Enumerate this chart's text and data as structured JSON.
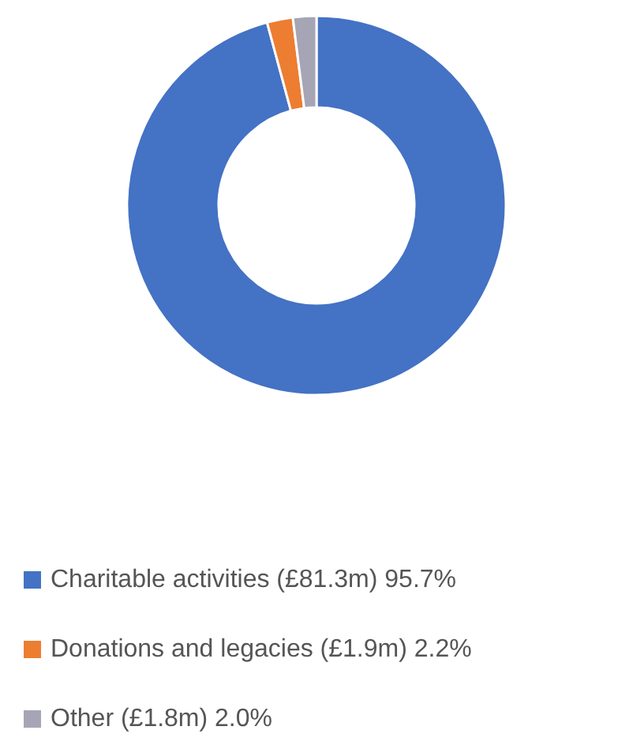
{
  "chart_data": {
    "type": "donut",
    "categories": [
      "Charitable activities (£81.3m) 95.7%",
      "Donations and legacies (£1.9m) 2.2%",
      "Other (£1.8m) 2.0%"
    ],
    "values": [
      95.7,
      2.2,
      2.0
    ],
    "colors": [
      "#4472c4",
      "#ed7d31",
      "#a5a5b5"
    ],
    "legend": "bottom"
  }
}
